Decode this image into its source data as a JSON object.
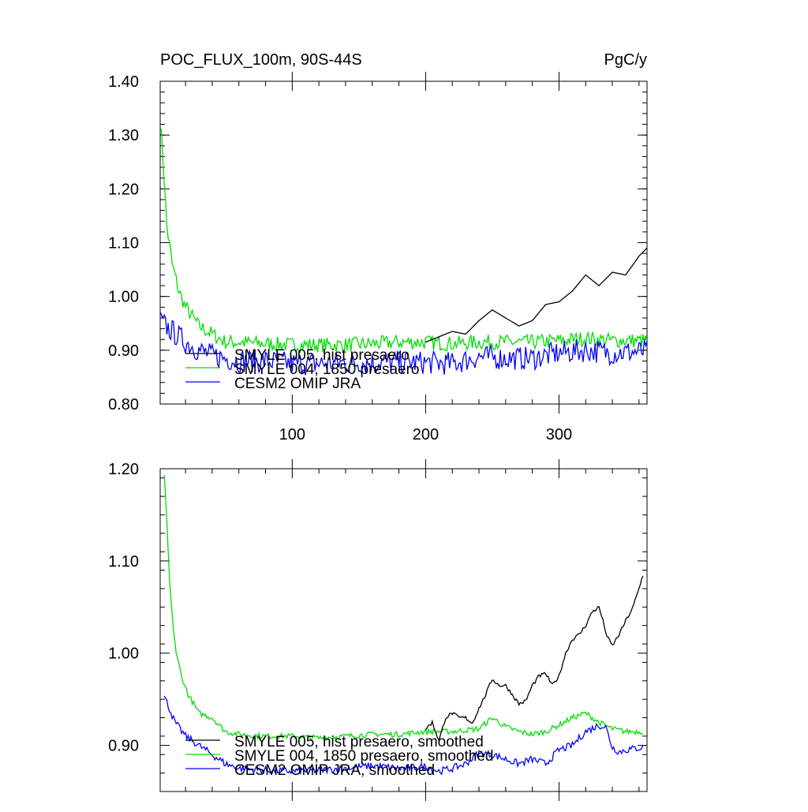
{
  "chart_data": [
    {
      "type": "line",
      "title": "POC_FLUX_100m, 90S-44S",
      "units": "PgC/y",
      "xlim": [
        1,
        366
      ],
      "ylim": [
        0.8,
        1.4
      ],
      "yticks": [
        0.8,
        0.9,
        1.0,
        1.1,
        1.2,
        1.3,
        1.4
      ],
      "yticklabels": [
        "0.80",
        "0.90",
        "1.00",
        "1.10",
        "1.20",
        "1.30",
        "1.40"
      ],
      "xticks": [
        100,
        200,
        300
      ],
      "xticklabels": [
        "100",
        "200",
        "300"
      ],
      "legend_position": "bottom-left",
      "series": [
        {
          "name": "SMYLE 005, hist presaero",
          "color": "#000000",
          "x_start": 200,
          "x_end": 366,
          "points": [
            [
              200,
              0.915
            ],
            [
              210,
              0.925
            ],
            [
              220,
              0.935
            ],
            [
              230,
              0.93
            ],
            [
              240,
              0.955
            ],
            [
              250,
              0.975
            ],
            [
              260,
              0.96
            ],
            [
              270,
              0.945
            ],
            [
              280,
              0.955
            ],
            [
              290,
              0.985
            ],
            [
              300,
              0.99
            ],
            [
              310,
              1.01
            ],
            [
              320,
              1.04
            ],
            [
              330,
              1.02
            ],
            [
              340,
              1.045
            ],
            [
              350,
              1.04
            ],
            [
              360,
              1.075
            ],
            [
              366,
              1.09
            ]
          ]
        },
        {
          "name": "SMYLE 004, 1850 presaero",
          "color": "#00dd00",
          "x_start": 1,
          "x_end": 366,
          "points": [
            [
              1,
              1.33
            ],
            [
              3,
              1.26
            ],
            [
              6,
              1.13
            ],
            [
              10,
              1.06
            ],
            [
              15,
              1.01
            ],
            [
              20,
              0.98
            ],
            [
              30,
              0.945
            ],
            [
              40,
              0.93
            ],
            [
              50,
              0.915
            ],
            [
              60,
              0.915
            ],
            [
              80,
              0.912
            ],
            [
              100,
              0.91
            ],
            [
              120,
              0.91
            ],
            [
              140,
              0.91
            ],
            [
              160,
              0.912
            ],
            [
              180,
              0.915
            ],
            [
              200,
              0.915
            ],
            [
              220,
              0.912
            ],
            [
              240,
              0.915
            ],
            [
              260,
              0.915
            ],
            [
              280,
              0.915
            ],
            [
              300,
              0.918
            ],
            [
              320,
              0.922
            ],
            [
              340,
              0.918
            ],
            [
              366,
              0.918
            ]
          ]
        },
        {
          "name": "CESM2 OMIP JRA",
          "color": "#0000ff",
          "x_start": 1,
          "x_end": 366,
          "points": [
            [
              1,
              0.955
            ],
            [
              5,
              0.945
            ],
            [
              10,
              0.935
            ],
            [
              20,
              0.915
            ],
            [
              30,
              0.9
            ],
            [
              40,
              0.89
            ],
            [
              50,
              0.885
            ],
            [
              60,
              0.88
            ],
            [
              80,
              0.88
            ],
            [
              100,
              0.875
            ],
            [
              120,
              0.875
            ],
            [
              140,
              0.877
            ],
            [
              160,
              0.877
            ],
            [
              180,
              0.878
            ],
            [
              200,
              0.877
            ],
            [
              220,
              0.875
            ],
            [
              240,
              0.888
            ],
            [
              260,
              0.885
            ],
            [
              280,
              0.885
            ],
            [
              300,
              0.895
            ],
            [
              320,
              0.9
            ],
            [
              340,
              0.895
            ],
            [
              366,
              0.898
            ]
          ]
        }
      ]
    },
    {
      "type": "line",
      "title": "",
      "xlim": [
        1,
        366
      ],
      "ylim": [
        0.85,
        1.2
      ],
      "yticks": [
        0.9,
        1.0,
        1.1,
        1.2
      ],
      "yticklabels": [
        "0.90",
        "1.00",
        "1.10",
        "1.20"
      ],
      "xticks": [
        100,
        200,
        300
      ],
      "xticklabels": [],
      "legend_position": "bottom-left",
      "series": [
        {
          "name": "SMYLE 005, hist presaero, smoothed",
          "color": "#000000",
          "x_start": 200,
          "x_end": 363,
          "points": [
            [
              200,
              0.918
            ],
            [
              205,
              0.925
            ],
            [
              210,
              0.905
            ],
            [
              215,
              0.93
            ],
            [
              220,
              0.935
            ],
            [
              225,
              0.93
            ],
            [
              230,
              0.93
            ],
            [
              235,
              0.924
            ],
            [
              240,
              0.94
            ],
            [
              245,
              0.955
            ],
            [
              250,
              0.972
            ],
            [
              255,
              0.965
            ],
            [
              260,
              0.965
            ],
            [
              265,
              0.955
            ],
            [
              270,
              0.945
            ],
            [
              275,
              0.948
            ],
            [
              280,
              0.965
            ],
            [
              285,
              0.975
            ],
            [
              290,
              0.978
            ],
            [
              295,
              0.965
            ],
            [
              300,
              0.975
            ],
            [
              305,
              1.0
            ],
            [
              310,
              1.015
            ],
            [
              315,
              1.02
            ],
            [
              320,
              1.03
            ],
            [
              325,
              1.045
            ],
            [
              330,
              1.05
            ],
            [
              333,
              1.035
            ],
            [
              336,
              1.018
            ],
            [
              340,
              1.008
            ],
            [
              345,
              1.02
            ],
            [
              350,
              1.035
            ],
            [
              355,
              1.048
            ],
            [
              360,
              1.07
            ],
            [
              363,
              1.085
            ]
          ]
        },
        {
          "name": "SMYLE 004, 1850 presaero, smoothed",
          "color": "#00dd00",
          "x_start": 4,
          "x_end": 363,
          "points": [
            [
              4,
              1.195
            ],
            [
              6,
              1.14
            ],
            [
              8,
              1.08
            ],
            [
              10,
              1.04
            ],
            [
              13,
              1.0
            ],
            [
              17,
              0.975
            ],
            [
              22,
              0.955
            ],
            [
              30,
              0.935
            ],
            [
              40,
              0.93
            ],
            [
              50,
              0.915
            ],
            [
              60,
              0.912
            ],
            [
              80,
              0.91
            ],
            [
              100,
              0.91
            ],
            [
              120,
              0.908
            ],
            [
              140,
              0.91
            ],
            [
              160,
              0.912
            ],
            [
              180,
              0.912
            ],
            [
              200,
              0.915
            ],
            [
              220,
              0.915
            ],
            [
              240,
              0.918
            ],
            [
              250,
              0.93
            ],
            [
              260,
              0.92
            ],
            [
              270,
              0.915
            ],
            [
              280,
              0.912
            ],
            [
              290,
              0.915
            ],
            [
              300,
              0.922
            ],
            [
              310,
              0.93
            ],
            [
              320,
              0.935
            ],
            [
              330,
              0.925
            ],
            [
              340,
              0.918
            ],
            [
              350,
              0.915
            ],
            [
              363,
              0.915
            ]
          ]
        },
        {
          "name": "CESM2 OMIP JRA, smoothed",
          "color": "#0000ff",
          "x_start": 4,
          "x_end": 363,
          "points": [
            [
              4,
              0.953
            ],
            [
              8,
              0.94
            ],
            [
              12,
              0.925
            ],
            [
              20,
              0.91
            ],
            [
              30,
              0.9
            ],
            [
              40,
              0.89
            ],
            [
              50,
              0.88
            ],
            [
              60,
              0.875
            ],
            [
              80,
              0.873
            ],
            [
              100,
              0.872
            ],
            [
              120,
              0.873
            ],
            [
              140,
              0.875
            ],
            [
              160,
              0.878
            ],
            [
              180,
              0.875
            ],
            [
              200,
              0.877
            ],
            [
              210,
              0.872
            ],
            [
              220,
              0.875
            ],
            [
              230,
              0.88
            ],
            [
              240,
              0.892
            ],
            [
              250,
              0.89
            ],
            [
              260,
              0.885
            ],
            [
              270,
              0.88
            ],
            [
              280,
              0.885
            ],
            [
              290,
              0.88
            ],
            [
              300,
              0.895
            ],
            [
              310,
              0.9
            ],
            [
              320,
              0.915
            ],
            [
              330,
              0.922
            ],
            [
              335,
              0.92
            ],
            [
              340,
              0.898
            ],
            [
              345,
              0.893
            ],
            [
              350,
              0.895
            ],
            [
              363,
              0.898
            ]
          ]
        }
      ]
    }
  ]
}
